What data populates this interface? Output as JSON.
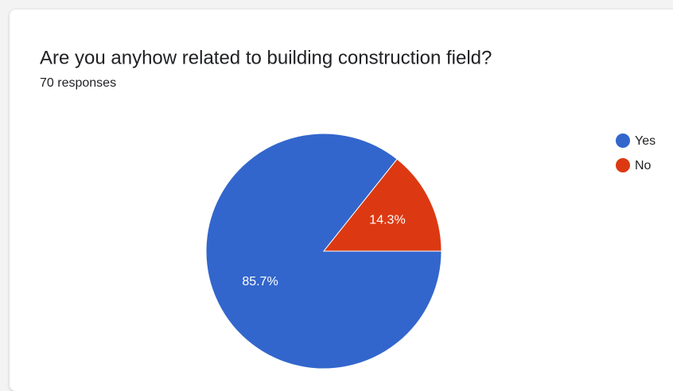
{
  "chart_data": {
    "type": "pie",
    "title": "Are you anyhow related to building construction field?",
    "subtitle": "70 responses",
    "categories": [
      "Yes",
      "No"
    ],
    "values": [
      85.7,
      14.3
    ],
    "value_labels": [
      "85.7%",
      "14.3%"
    ],
    "colors": [
      "#3366cc",
      "#dc3912"
    ],
    "legend": "right"
  }
}
